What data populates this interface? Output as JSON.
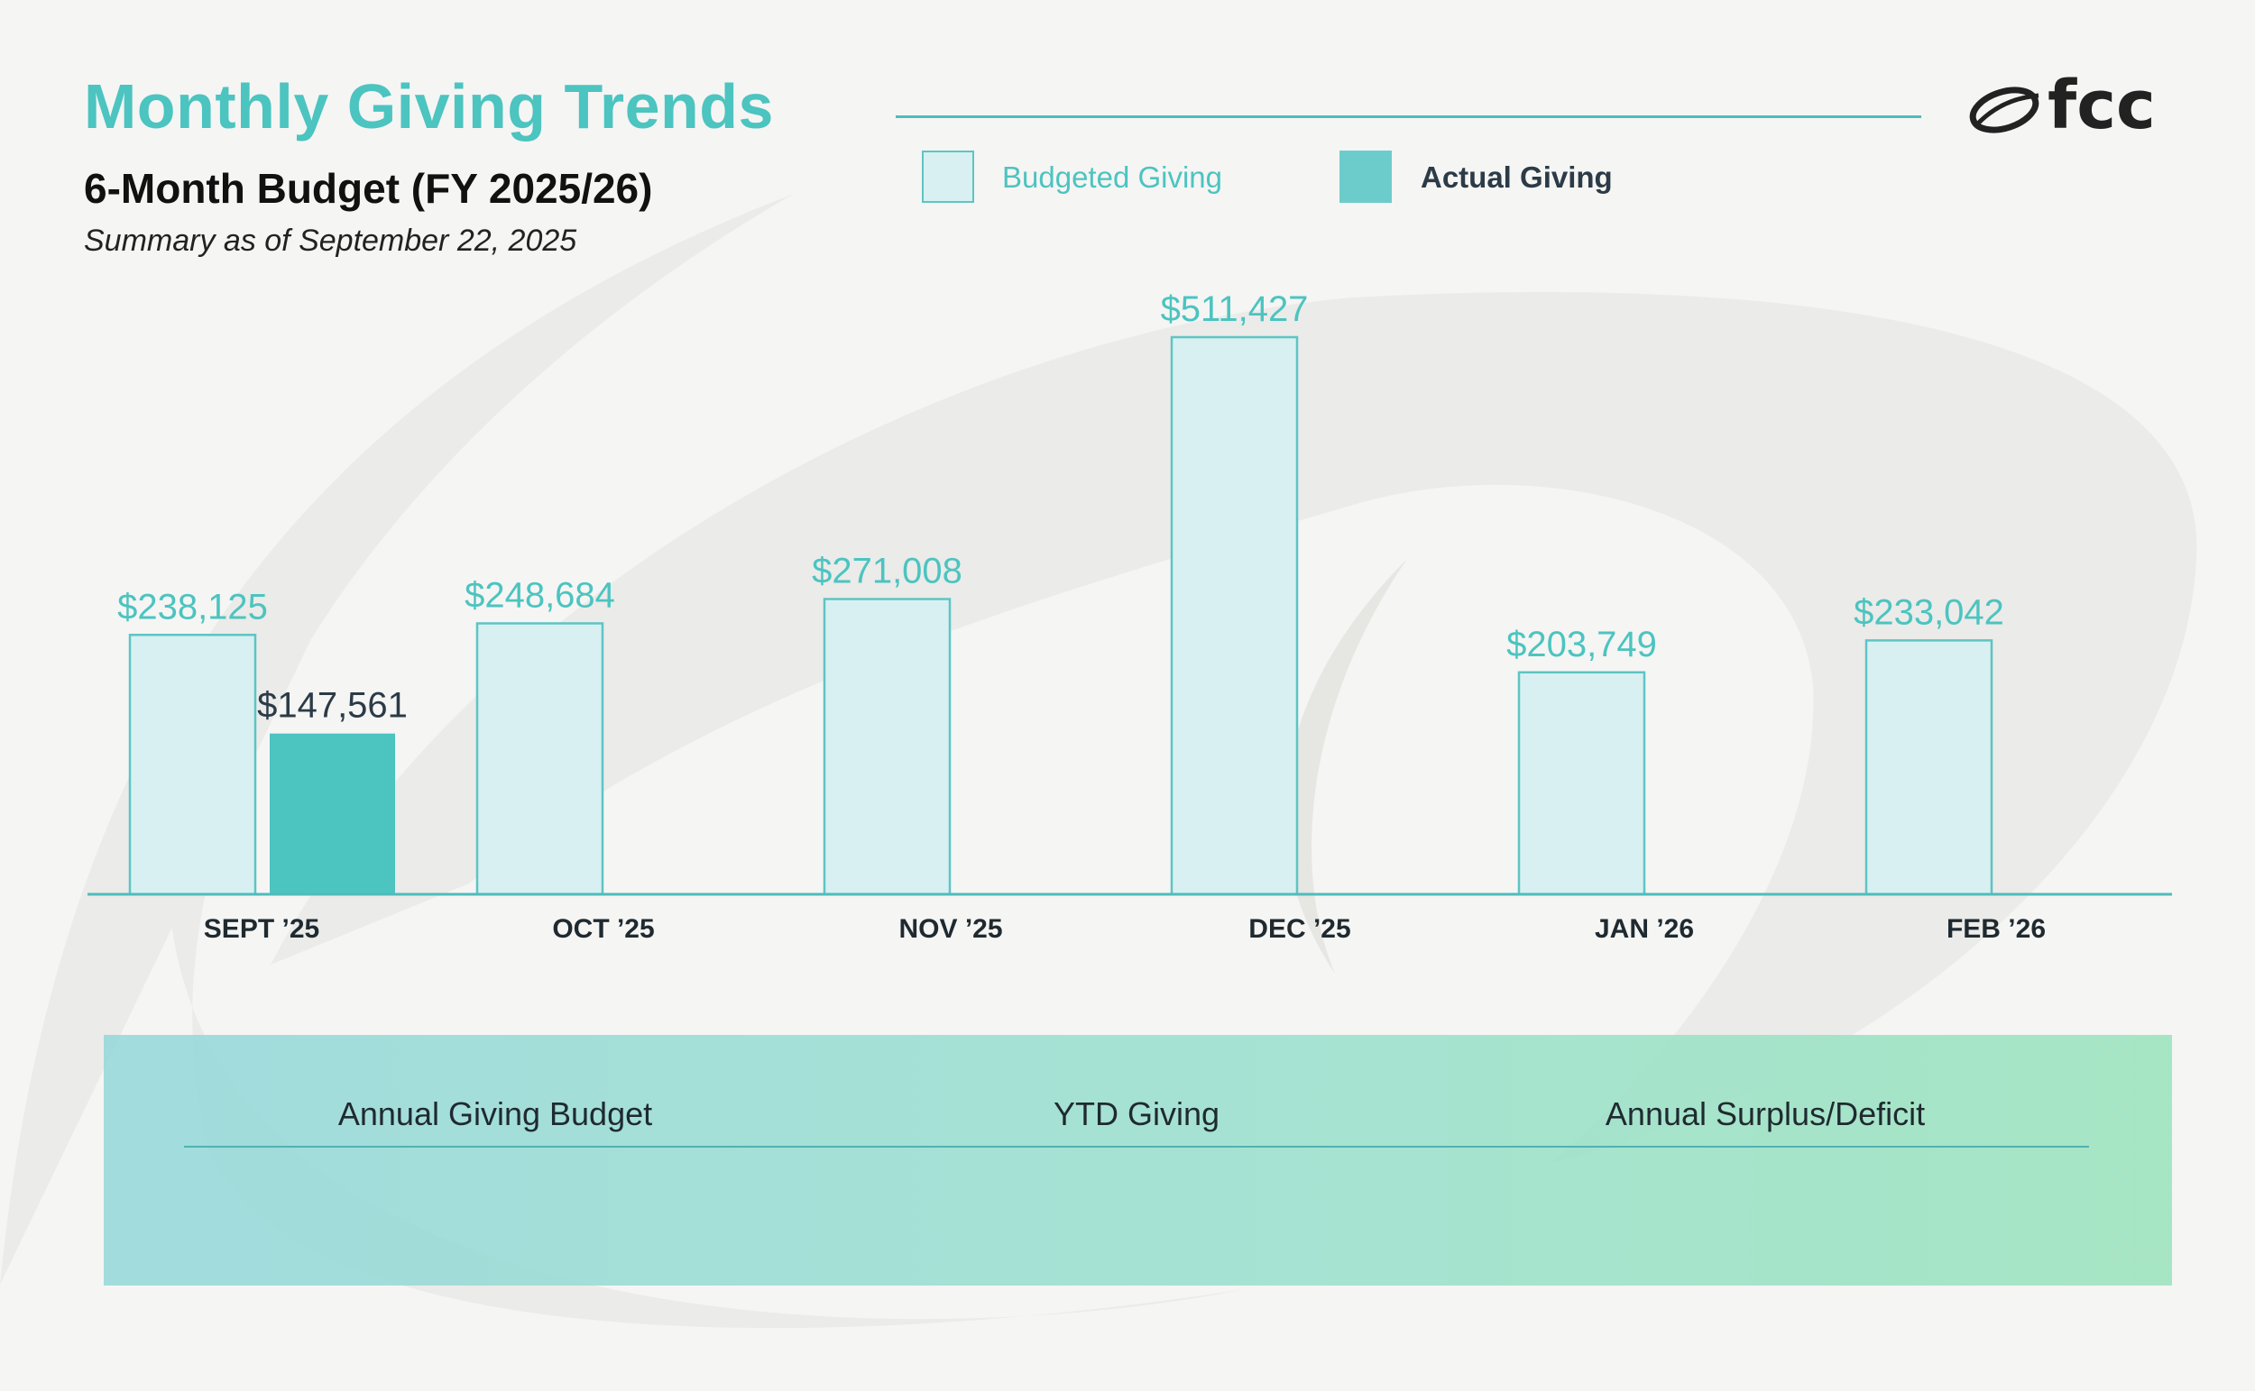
{
  "header": {
    "title": "Monthly Giving Trends",
    "subtitle": "6-Month Budget (FY 2025/26)",
    "summary_date": "Summary as of September 22, 2025"
  },
  "logo": {
    "text": "fcc",
    "icon": "fcc-swoosh-logo"
  },
  "legend": {
    "budgeted_label": "Budgeted Giving",
    "actual_label": "Actual Giving"
  },
  "colors": {
    "accent": "#4cc4c0",
    "budget_fill": "#d8f0f1",
    "budget_stroke": "#5fc4c4",
    "actual_fill": "#4cc4c0",
    "dark_text": "#2b3b47",
    "axis": "#4fbcbc"
  },
  "chart_data": {
    "type": "bar",
    "categories": [
      "SEPT ’25",
      "OCT ’25",
      "NOV ’25",
      "DEC ’25",
      "JAN ’26",
      "FEB ’26"
    ],
    "series": [
      {
        "name": "Budgeted Giving",
        "values": [
          238125,
          248684,
          271008,
          511427,
          203749,
          233042
        ],
        "labels": [
          "$238,125",
          "$248,684",
          "$271,008",
          "$511,427",
          "$203,749",
          "$233,042"
        ]
      },
      {
        "name": "Actual Giving",
        "values": [
          147561,
          null,
          null,
          null,
          null,
          null
        ],
        "labels": [
          "$147,561",
          null,
          null,
          null,
          null,
          null
        ]
      }
    ],
    "title": "Monthly Giving Trends",
    "xlabel": "",
    "ylabel": "",
    "ylim": [
      0,
      511427
    ],
    "grid": false,
    "legend": "top"
  },
  "summary_panel": {
    "labels": [
      "Annual Giving Budget",
      "YTD Giving",
      "Annual Surplus/Deficit"
    ]
  }
}
